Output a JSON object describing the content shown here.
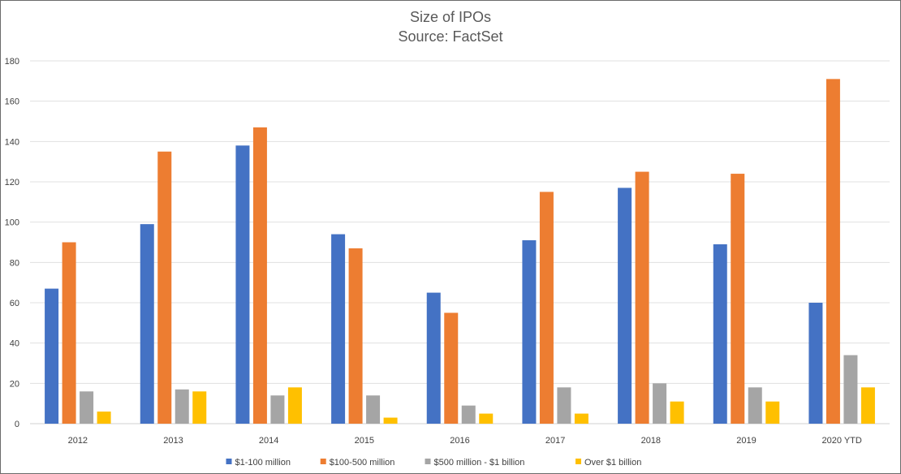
{
  "chart_data": {
    "type": "bar",
    "title": "Size of IPOs",
    "subtitle": "Source: FactSet",
    "xlabel": "",
    "ylabel": "",
    "categories": [
      "2012",
      "2013",
      "2014",
      "2015",
      "2016",
      "2017",
      "2018",
      "2019",
      "2020 YTD"
    ],
    "series": [
      {
        "name": "$1-100 million",
        "color": "#4472C4",
        "values": [
          67,
          99,
          138,
          94,
          65,
          91,
          117,
          89,
          60
        ]
      },
      {
        "name": "$100-500 million",
        "color": "#ED7D31",
        "values": [
          90,
          135,
          147,
          87,
          55,
          115,
          125,
          124,
          171
        ]
      },
      {
        "name": "$500 million - $1 billion",
        "color": "#A5A5A5",
        "values": [
          16,
          17,
          14,
          14,
          9,
          18,
          20,
          18,
          34
        ]
      },
      {
        "name": "Over $1 billion",
        "color": "#FFC000",
        "values": [
          6,
          16,
          18,
          3,
          5,
          5,
          11,
          11,
          18
        ]
      }
    ],
    "ylim": [
      0,
      180
    ],
    "yticks": [
      0,
      20,
      40,
      60,
      80,
      100,
      120,
      140,
      160,
      180
    ],
    "grid": true,
    "legend_position": "bottom"
  }
}
